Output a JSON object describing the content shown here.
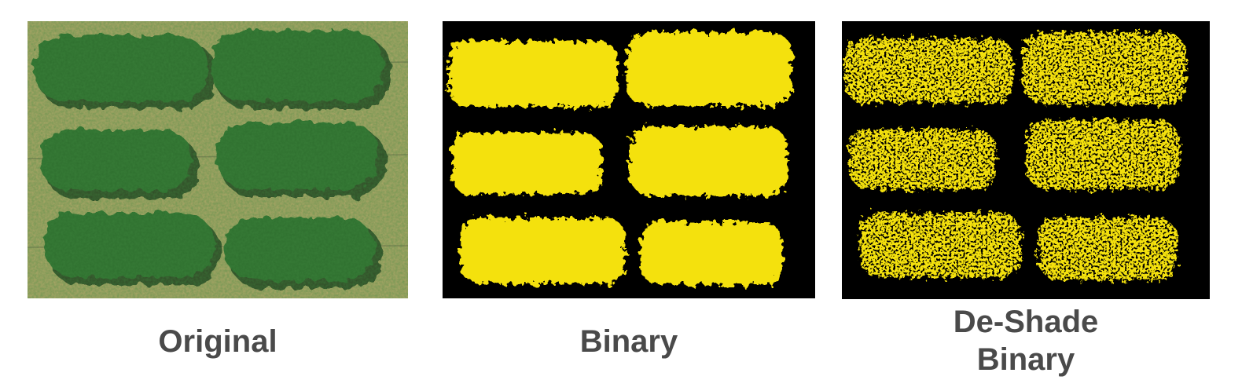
{
  "panels": [
    {
      "id": "original",
      "caption": "Original",
      "colors": {
        "ground": "#b5ae6b",
        "canopy": "#2d6e2f",
        "shadow": "#1d3a1c"
      }
    },
    {
      "id": "binary",
      "caption": "Binary",
      "colors": {
        "background": "#000000",
        "foreground": "#f4e10a"
      }
    },
    {
      "id": "deshade",
      "caption_lines": [
        "De-Shade",
        "Binary"
      ],
      "colors": {
        "background": "#000000",
        "foreground": "#f4e10a"
      }
    }
  ],
  "caption_color": "#4a4a4a"
}
